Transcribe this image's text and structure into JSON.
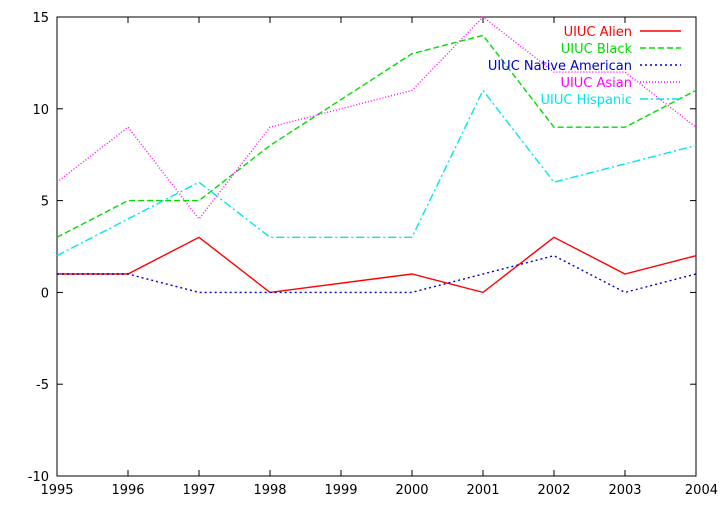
{
  "chart_data": {
    "type": "line",
    "title": "",
    "xlabel": "",
    "ylabel": "",
    "x": [
      1995,
      1996,
      1997,
      1998,
      1999,
      2000,
      2001,
      2002,
      2003,
      2004
    ],
    "xlim": [
      1995,
      2004
    ],
    "ylim": [
      -10,
      15
    ],
    "x_ticks": [
      "1995",
      "1996",
      "1997",
      "1998",
      "1999",
      "2000",
      "2001",
      "2002",
      "2003",
      "2004"
    ],
    "y_ticks": [
      "-10",
      "-5",
      "0",
      "5",
      "10",
      "15"
    ],
    "grid": false,
    "legend_position": "top-right",
    "series": [
      {
        "name": "UIUC Alien",
        "color": "#ff0000",
        "dash": "solid",
        "x": [
          1995,
          1996,
          1997,
          1998,
          2000,
          2001,
          2002,
          2003,
          2004
        ],
        "values": [
          1,
          1,
          3,
          0,
          1,
          0,
          3,
          1,
          2
        ]
      },
      {
        "name": "UIUC Black",
        "color": "#00dd00",
        "dash": "dashed",
        "x": [
          1995,
          1996,
          1997,
          1998,
          2000,
          2001,
          2002,
          2003,
          2004
        ],
        "values": [
          3,
          5,
          5,
          8,
          13,
          14,
          9,
          9,
          11
        ]
      },
      {
        "name": "UIUC Native American",
        "color": "#0000cc",
        "dash": "dotted",
        "x": [
          1995,
          1996,
          1997,
          1998,
          2000,
          2001,
          2002,
          2003,
          2004
        ],
        "values": [
          1,
          1,
          0,
          0,
          0,
          1,
          2,
          0,
          1
        ]
      },
      {
        "name": "UIUC Asian",
        "color": "#ff00ff",
        "dash": "fine-dotted",
        "x": [
          1995,
          1996,
          1997,
          1998,
          2000,
          2001,
          2002,
          2003,
          2004
        ],
        "values": [
          6,
          9,
          4,
          9,
          11,
          15,
          12,
          12,
          9
        ]
      },
      {
        "name": "UIUC Hispanic",
        "color": "#00e5ee",
        "dash": "dash-dot",
        "x": [
          1995,
          1996,
          1997,
          1998,
          2000,
          2001,
          2002,
          2003,
          2004
        ],
        "values": [
          2,
          4,
          6,
          3,
          3,
          11,
          6,
          7,
          8
        ]
      }
    ]
  }
}
